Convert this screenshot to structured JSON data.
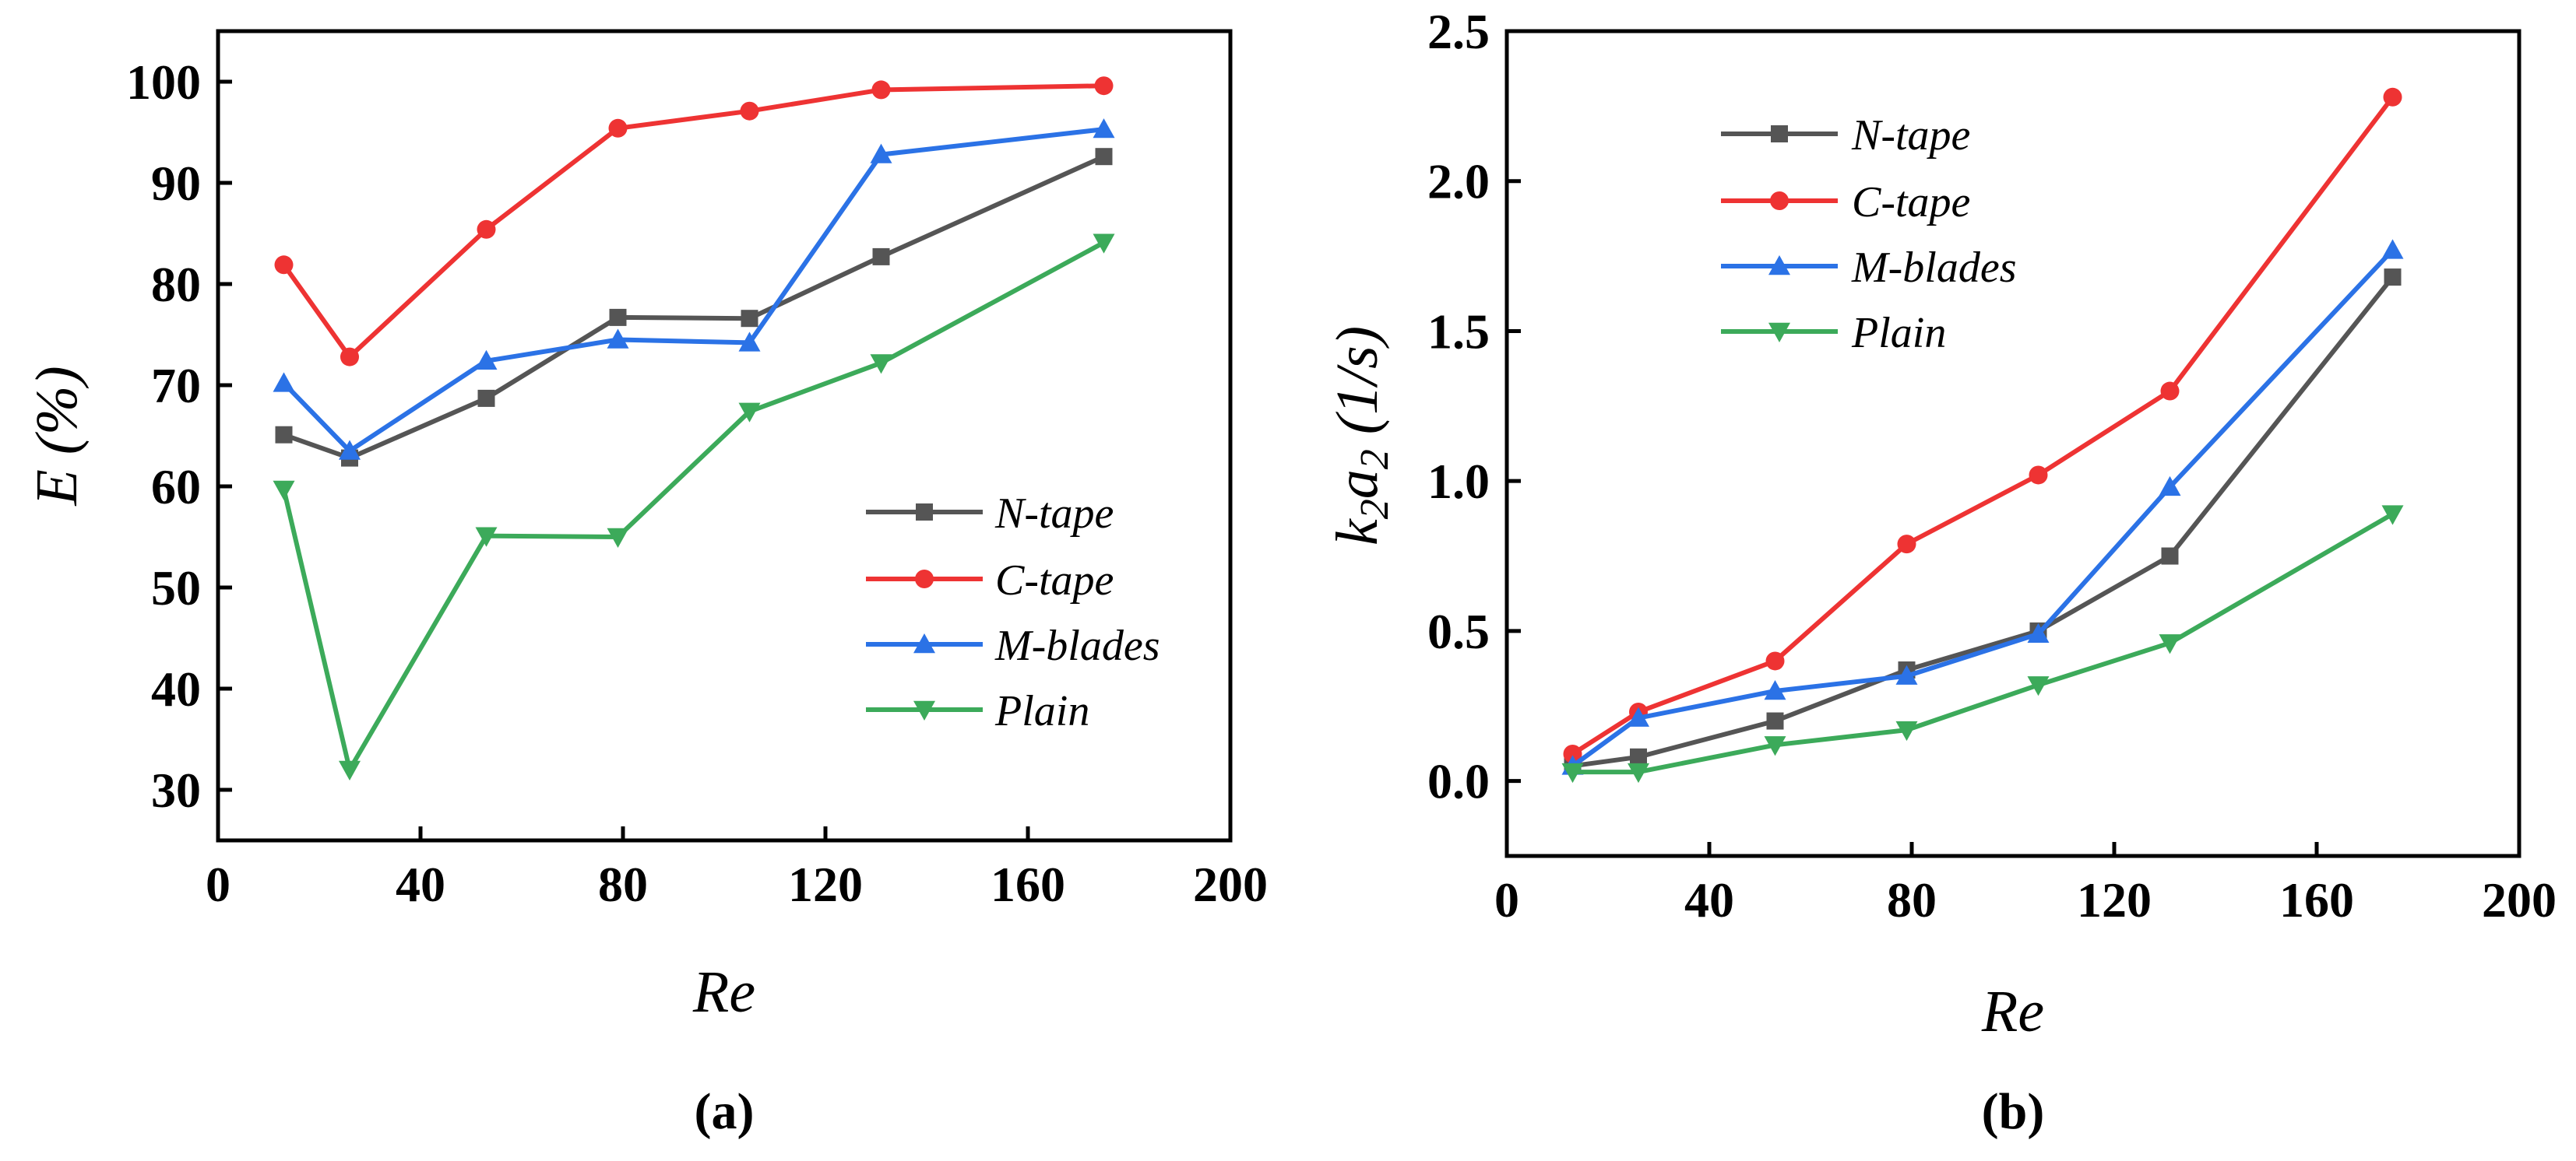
{
  "colors": {
    "N-tape": "#555555",
    "C-tape": "#ee3333",
    "M-blades": "#2b72e6",
    "Plain": "#3caa5a"
  },
  "chart_data": [
    {
      "type": "line",
      "panel_label": "(a)",
      "xlabel": "Re",
      "ylabel": "E (%)",
      "xlim": [
        0,
        200
      ],
      "ylim": [
        25,
        105
      ],
      "xticks": [
        0,
        40,
        80,
        120,
        160,
        200
      ],
      "yticks": [
        30,
        40,
        50,
        60,
        70,
        80,
        90,
        100
      ],
      "x": [
        13,
        26,
        53,
        79,
        105,
        131,
        175
      ],
      "legend_position": "center-right",
      "series": [
        {
          "name": "N-tape",
          "marker": "square",
          "values": [
            65.1,
            62.8,
            68.7,
            76.7,
            76.6,
            82.7,
            92.6
          ]
        },
        {
          "name": "C-tape",
          "marker": "circle",
          "values": [
            81.9,
            72.8,
            85.4,
            95.4,
            97.1,
            99.2,
            99.6
          ]
        },
        {
          "name": "M-blades",
          "marker": "triangle-up",
          "values": [
            70.2,
            63.5,
            72.4,
            74.5,
            74.2,
            92.8,
            95.3
          ]
        },
        {
          "name": "Plain",
          "marker": "triangle-down",
          "values": [
            59.7,
            32.0,
            55.1,
            55.0,
            67.4,
            72.2,
            84.1
          ]
        }
      ]
    },
    {
      "type": "line",
      "panel_label": "(b)",
      "xlabel": "Re",
      "ylabel_main_1": "k",
      "ylabel_sub_1": "2",
      "ylabel_main_2": "a",
      "ylabel_sub_2": "2",
      "ylabel_unit": " (1/s)",
      "xlim": [
        0,
        200
      ],
      "ylim": [
        -0.25,
        2.5
      ],
      "xticks": [
        0,
        40,
        80,
        120,
        160,
        200
      ],
      "yticks": [
        "0.0",
        "0.5",
        "1.0",
        "1.5",
        "2.0",
        "2.5"
      ],
      "x": [
        13,
        26,
        53,
        79,
        105,
        131,
        175
      ],
      "legend_position": "top-left",
      "series": [
        {
          "name": "N-tape",
          "marker": "square",
          "values": [
            0.05,
            0.08,
            0.2,
            0.37,
            0.5,
            0.75,
            1.68
          ]
        },
        {
          "name": "C-tape",
          "marker": "circle",
          "values": [
            0.09,
            0.23,
            0.4,
            0.79,
            1.02,
            1.3,
            2.28
          ]
        },
        {
          "name": "M-blades",
          "marker": "triangle-up",
          "values": [
            0.05,
            0.21,
            0.3,
            0.35,
            0.49,
            0.98,
            1.77
          ]
        },
        {
          "name": "Plain",
          "marker": "triangle-down",
          "values": [
            0.03,
            0.03,
            0.12,
            0.17,
            0.32,
            0.46,
            0.89
          ]
        }
      ]
    }
  ]
}
